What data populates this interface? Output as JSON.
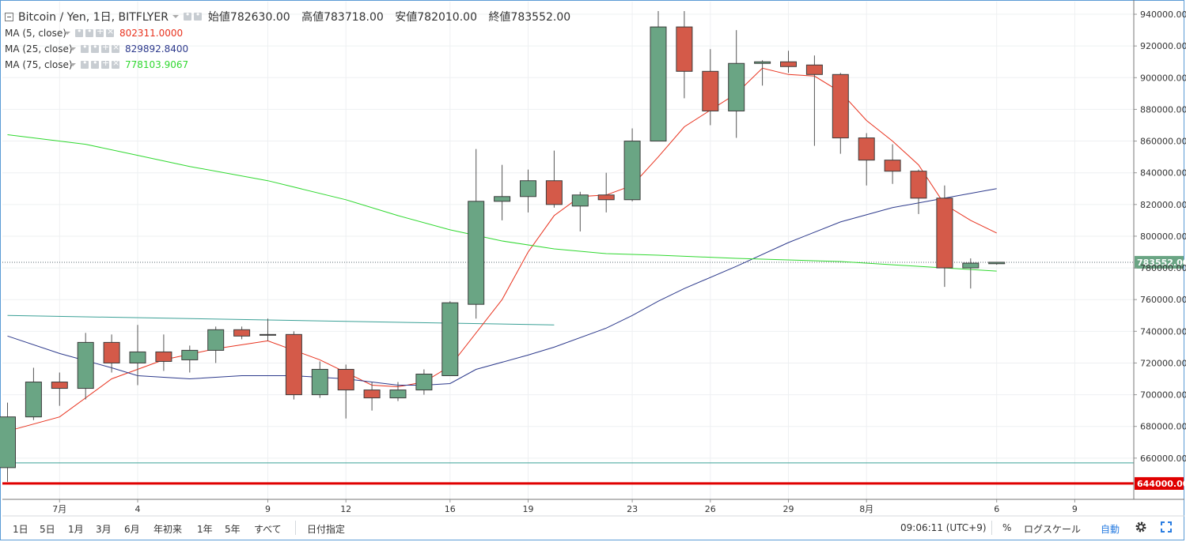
{
  "header": {
    "title": "Bitcoin / Yen, 1日, BITFLYER",
    "open": "始値782630.00",
    "high": "高値783718.00",
    "low": "安値782010.00",
    "close": "終値783552.00"
  },
  "indicators": [
    {
      "label": "MA (5, close)",
      "value": "802311.0000",
      "color": "#e8321e"
    },
    {
      "label": "MA (25, close)",
      "value": "829892.8400",
      "color": "#2d3a8c"
    },
    {
      "label": "MA (75, close)",
      "value": "778103.9067",
      "color": "#2fd82f"
    }
  ],
  "colors": {
    "up": "#6aa584",
    "down": "#d45a49",
    "wick": "#555555",
    "hline": "#3aa096",
    "support": "#e00000"
  },
  "timeframes": [
    "1日",
    "5日",
    "1月",
    "3月",
    "6月",
    "年初来",
    "1年",
    "5年",
    "すべて"
  ],
  "date_button": "日付指定",
  "clock": "09:06:11 (UTC+9)",
  "toolbar": {
    "percent": "%",
    "log_scale": "ログスケール",
    "auto": "自動"
  },
  "icons": {
    "settings": "gear-icon",
    "fullscreen": "fullscreen-icon",
    "collapse": "collapse-icon"
  },
  "chart_data": {
    "type": "candlestick",
    "x_labels": [
      {
        "index": 2,
        "label": "7月"
      },
      {
        "index": 5,
        "label": "4"
      },
      {
        "index": 10,
        "label": "9"
      },
      {
        "index": 13,
        "label": "12"
      },
      {
        "index": 17,
        "label": "16"
      },
      {
        "index": 20,
        "label": "19"
      },
      {
        "index": 24,
        "label": "23"
      },
      {
        "index": 27,
        "label": "26"
      },
      {
        "index": 30,
        "label": "29"
      },
      {
        "index": 33,
        "label": "8月"
      },
      {
        "index": 38,
        "label": "6"
      },
      {
        "index": 41,
        "label": "9"
      }
    ],
    "y_ticks": [
      660000,
      680000,
      700000,
      720000,
      740000,
      760000,
      780000,
      800000,
      820000,
      840000,
      860000,
      880000,
      900000,
      920000,
      940000
    ],
    "ylim": [
      634000,
      948000
    ],
    "candles": [
      {
        "o": 654000,
        "h": 695000,
        "l": 645000,
        "c": 686000
      },
      {
        "o": 686000,
        "h": 717000,
        "l": 684000,
        "c": 708000
      },
      {
        "o": 708000,
        "h": 714000,
        "l": 693000,
        "c": 704000
      },
      {
        "o": 704000,
        "h": 739000,
        "l": 697000,
        "c": 733000
      },
      {
        "o": 733000,
        "h": 738000,
        "l": 714000,
        "c": 720000
      },
      {
        "o": 720000,
        "h": 744000,
        "l": 706000,
        "c": 727000
      },
      {
        "o": 727000,
        "h": 738000,
        "l": 715000,
        "c": 721000
      },
      {
        "o": 722000,
        "h": 731000,
        "l": 714000,
        "c": 728000
      },
      {
        "o": 728000,
        "h": 743000,
        "l": 720000,
        "c": 741000
      },
      {
        "o": 741000,
        "h": 743000,
        "l": 735000,
        "c": 737000
      },
      {
        "o": 738000,
        "h": 748000,
        "l": 734000,
        "c": 738000
      },
      {
        "o": 738000,
        "h": 740000,
        "l": 697000,
        "c": 700000
      },
      {
        "o": 700000,
        "h": 721000,
        "l": 698000,
        "c": 716000
      },
      {
        "o": 716000,
        "h": 719000,
        "l": 685000,
        "c": 703000
      },
      {
        "o": 703000,
        "h": 708000,
        "l": 690000,
        "c": 698000
      },
      {
        "o": 698000,
        "h": 708000,
        "l": 696000,
        "c": 703000
      },
      {
        "o": 703000,
        "h": 716000,
        "l": 700000,
        "c": 713000
      },
      {
        "o": 712000,
        "h": 759000,
        "l": 712000,
        "c": 758000
      },
      {
        "o": 757000,
        "h": 855000,
        "l": 748000,
        "c": 822000
      },
      {
        "o": 822000,
        "h": 845000,
        "l": 810000,
        "c": 825000
      },
      {
        "o": 825000,
        "h": 842000,
        "l": 815000,
        "c": 835000
      },
      {
        "o": 835000,
        "h": 854000,
        "l": 818000,
        "c": 820000
      },
      {
        "o": 819000,
        "h": 828000,
        "l": 803000,
        "c": 826000
      },
      {
        "o": 826000,
        "h": 840000,
        "l": 815000,
        "c": 823000
      },
      {
        "o": 823000,
        "h": 868000,
        "l": 822000,
        "c": 860000
      },
      {
        "o": 860000,
        "h": 942000,
        "l": 860000,
        "c": 932000
      },
      {
        "o": 932000,
        "h": 942000,
        "l": 887000,
        "c": 904000
      },
      {
        "o": 904000,
        "h": 918000,
        "l": 870000,
        "c": 879000
      },
      {
        "o": 879000,
        "h": 930000,
        "l": 862000,
        "c": 909000
      },
      {
        "o": 909000,
        "h": 911000,
        "l": 895000,
        "c": 910000
      },
      {
        "o": 910000,
        "h": 917000,
        "l": 903000,
        "c": 907000
      },
      {
        "o": 908000,
        "h": 914000,
        "l": 857000,
        "c": 902000
      },
      {
        "o": 902000,
        "h": 903000,
        "l": 852000,
        "c": 862000
      },
      {
        "o": 862000,
        "h": 865000,
        "l": 832000,
        "c": 848000
      },
      {
        "o": 848000,
        "h": 858000,
        "l": 833000,
        "c": 841000
      },
      {
        "o": 841000,
        "h": 842000,
        "l": 814000,
        "c": 824000
      },
      {
        "o": 824000,
        "h": 832000,
        "l": 768000,
        "c": 780000
      },
      {
        "o": 780000,
        "h": 786000,
        "l": 767000,
        "c": 783000
      },
      {
        "o": 782630,
        "h": 783718,
        "l": 782010,
        "c": 783552
      }
    ],
    "series": [
      {
        "name": "MA (5, close)",
        "color": "#e8321e",
        "points": [
          [
            0,
            677000
          ],
          [
            2,
            686000
          ],
          [
            4,
            710000
          ],
          [
            6,
            722000
          ],
          [
            8,
            729000
          ],
          [
            10,
            734000
          ],
          [
            12,
            722000
          ],
          [
            14,
            706000
          ],
          [
            15,
            705000
          ],
          [
            16,
            708000
          ],
          [
            17,
            718000
          ],
          [
            19,
            760000
          ],
          [
            20,
            790000
          ],
          [
            21,
            813000
          ],
          [
            22,
            825000
          ],
          [
            23,
            826000
          ],
          [
            24,
            832000
          ],
          [
            25,
            850000
          ],
          [
            26,
            869000
          ],
          [
            28,
            890000
          ],
          [
            29,
            906000
          ],
          [
            30,
            902000
          ],
          [
            31,
            901000
          ],
          [
            32,
            891000
          ],
          [
            33,
            873000
          ],
          [
            34,
            860000
          ],
          [
            35,
            845000
          ],
          [
            36,
            820000
          ],
          [
            37,
            810000
          ],
          [
            38,
            802000
          ]
        ]
      },
      {
        "name": "MA (25, close)",
        "color": "#2d3a8c",
        "points": [
          [
            0,
            737000
          ],
          [
            2,
            726000
          ],
          [
            4,
            717000
          ],
          [
            5,
            712000
          ],
          [
            7,
            710000
          ],
          [
            9,
            712000
          ],
          [
            11,
            712000
          ],
          [
            13,
            710000
          ],
          [
            15,
            706000
          ],
          [
            16,
            706000
          ],
          [
            17,
            707000
          ],
          [
            18,
            716000
          ],
          [
            20,
            725000
          ],
          [
            21,
            730000
          ],
          [
            23,
            742000
          ],
          [
            24,
            750000
          ],
          [
            25,
            759000
          ],
          [
            26,
            767000
          ],
          [
            28,
            781000
          ],
          [
            30,
            796000
          ],
          [
            32,
            809000
          ],
          [
            34,
            818000
          ],
          [
            36,
            824000
          ],
          [
            37,
            827000
          ],
          [
            38,
            830000
          ]
        ]
      },
      {
        "name": "MA (75, close)",
        "color": "#2fd82f",
        "points": [
          [
            0,
            864000
          ],
          [
            3,
            858000
          ],
          [
            5,
            851000
          ],
          [
            7,
            844000
          ],
          [
            10,
            835000
          ],
          [
            13,
            823000
          ],
          [
            15,
            813000
          ],
          [
            17,
            804000
          ],
          [
            19,
            797000
          ],
          [
            21,
            792000
          ],
          [
            23,
            789000
          ],
          [
            25,
            788000
          ],
          [
            28,
            786000
          ],
          [
            30,
            785000
          ],
          [
            32,
            784000
          ],
          [
            34,
            782000
          ],
          [
            36,
            780000
          ],
          [
            38,
            778000
          ]
        ]
      }
    ],
    "trendline": {
      "from": [
        0,
        750000
      ],
      "to": [
        21,
        744000
      ],
      "color": "#3aa096"
    },
    "horizontal_lines": [
      {
        "y": 657000,
        "color": "#3aa096",
        "label": ""
      },
      {
        "y": 644000,
        "color": "#e00000",
        "label": "644000.00"
      }
    ],
    "last_price": {
      "y": 783552,
      "label": "783552.00"
    }
  }
}
